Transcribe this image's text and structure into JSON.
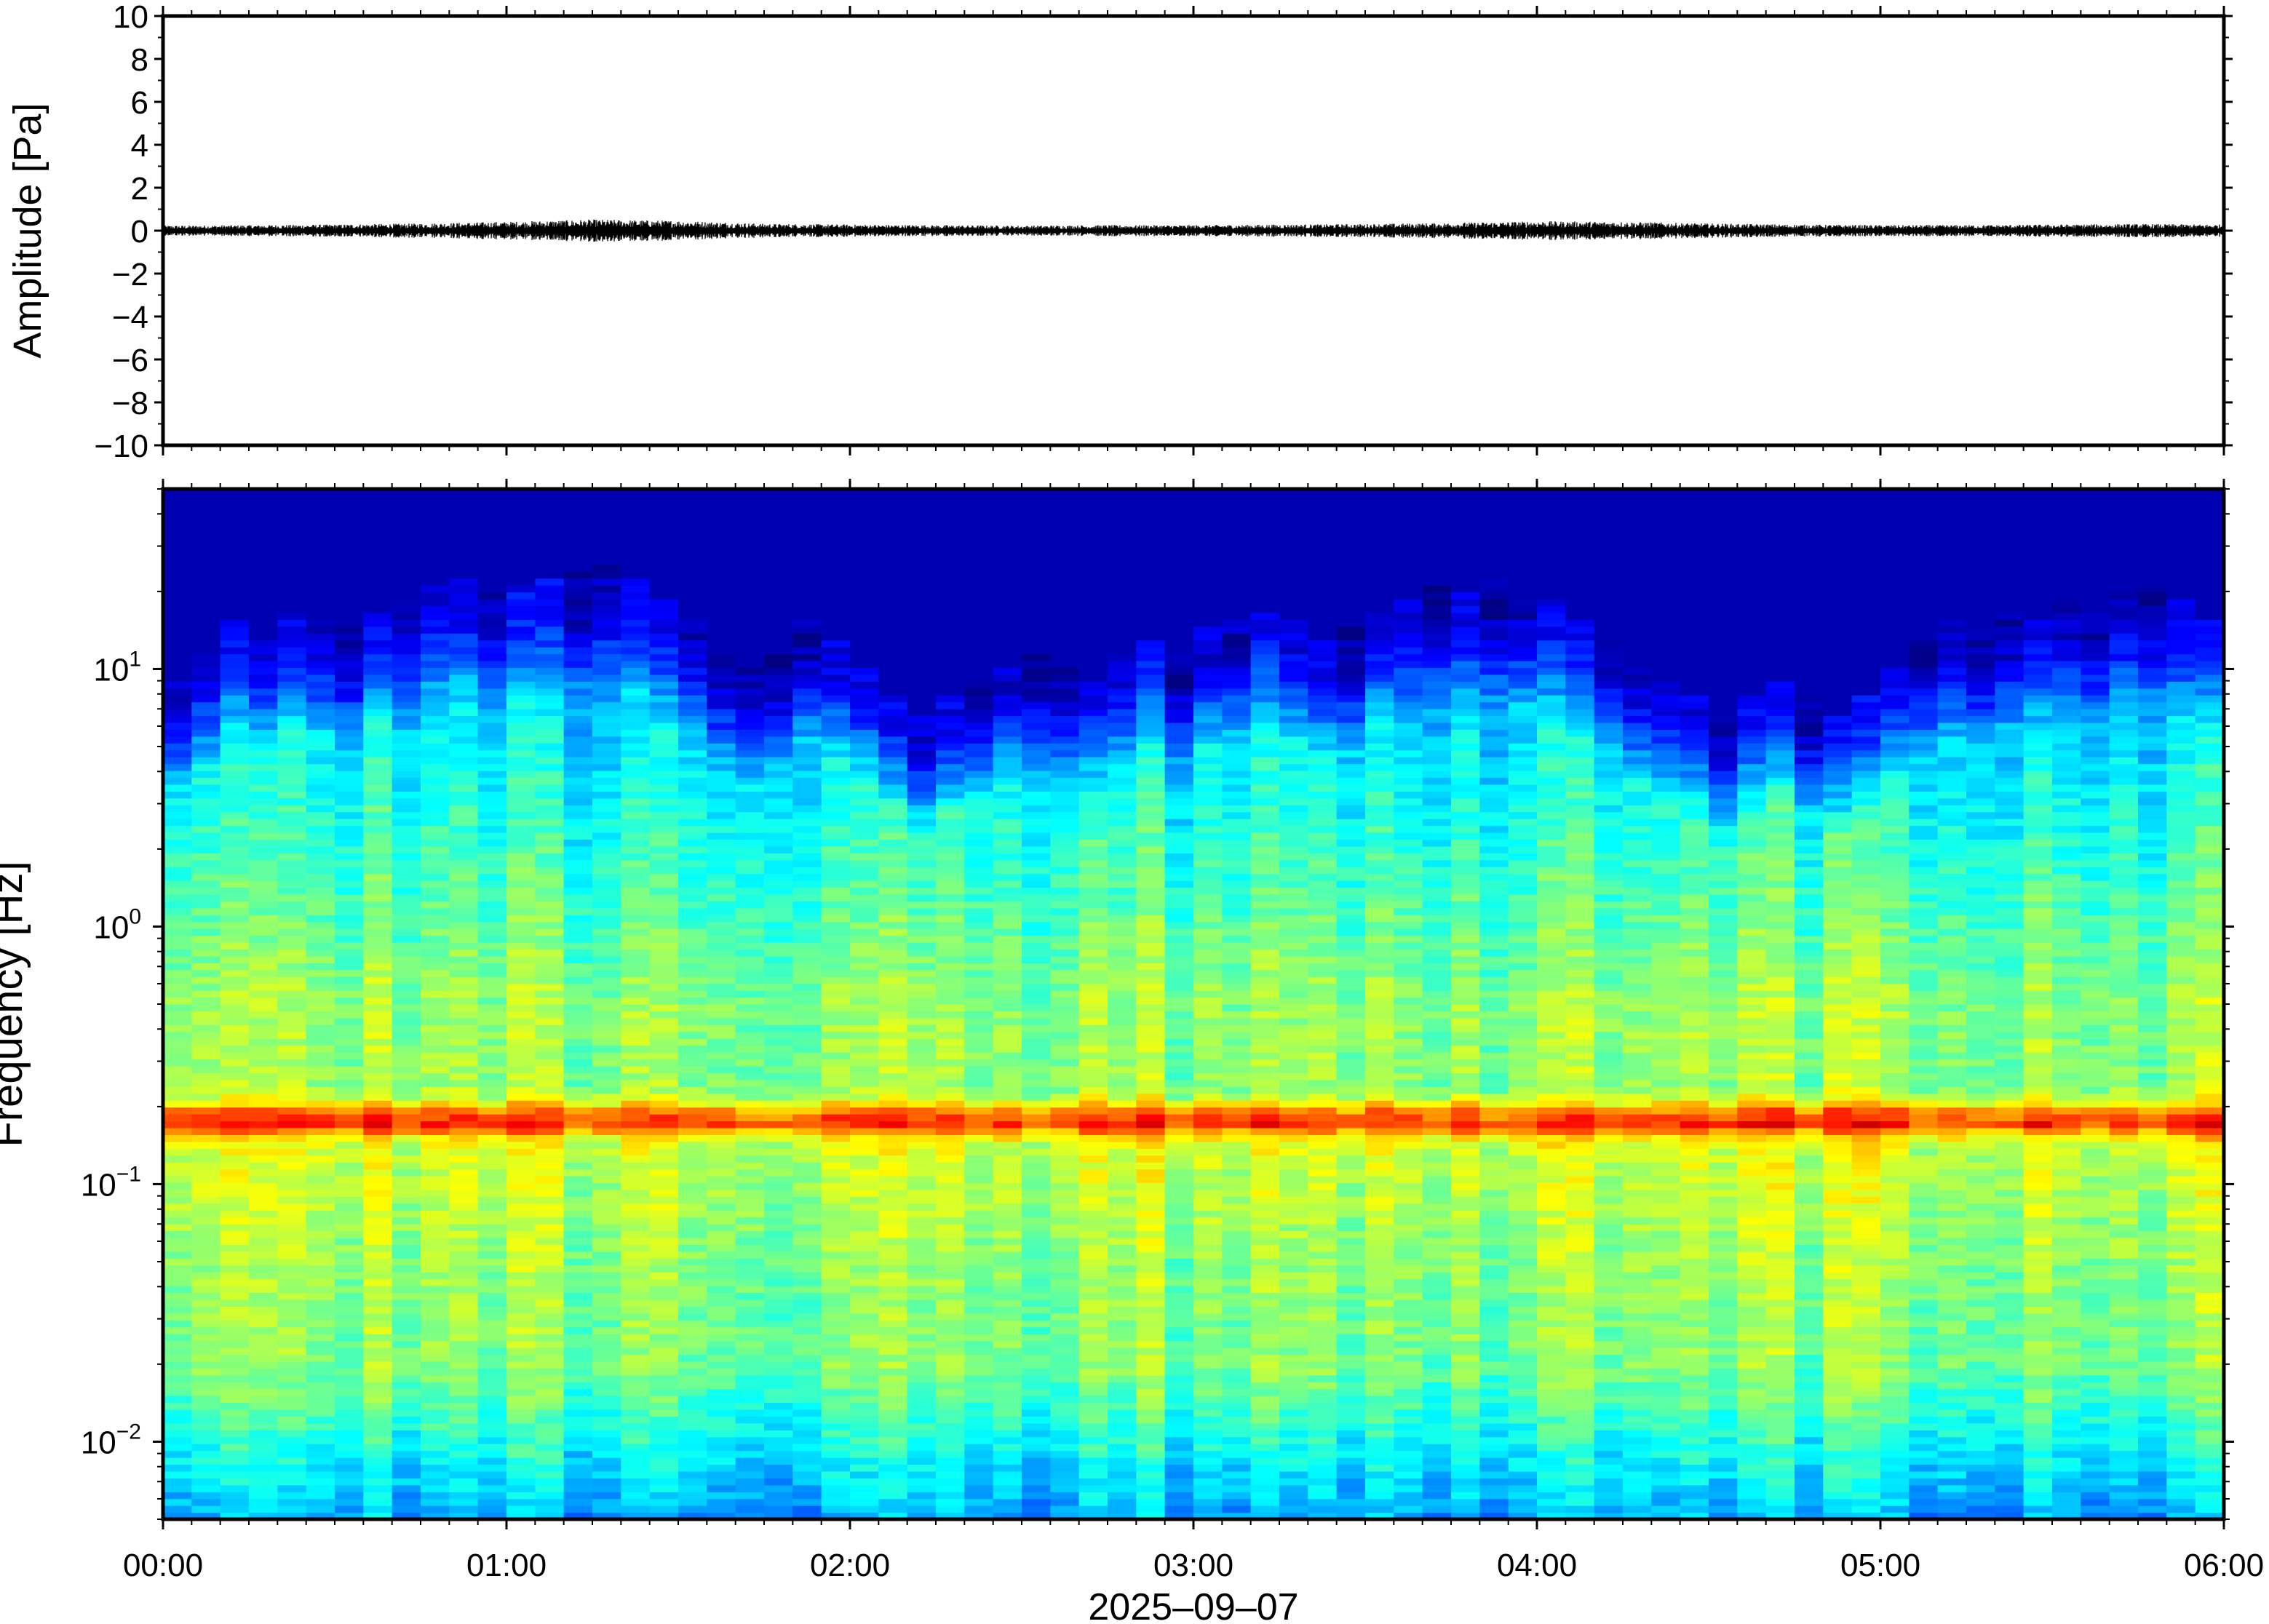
{
  "chart_data": [
    {
      "type": "line",
      "ylabel": "Amplitude [Pa]",
      "xlabel": "2025–09–07",
      "ylim": [
        -10,
        10
      ],
      "y_ticks": [
        10,
        8,
        6,
        4,
        2,
        0,
        -2,
        -4,
        -6,
        -8,
        -10
      ],
      "y_tick_labels": [
        "10",
        "8",
        "6",
        "4",
        "2",
        "0",
        "−2",
        "−4",
        "−6",
        "−8",
        "−10"
      ],
      "x_range_hours": [
        0,
        6
      ],
      "series": [
        {
          "color": "#000000",
          "x_hours": [
            0.0,
            0.25,
            0.5,
            0.75,
            1.0,
            1.25,
            1.5,
            1.75,
            2.0,
            2.25,
            2.5,
            2.75,
            3.0,
            3.25,
            3.5,
            3.75,
            4.0,
            4.25,
            4.5,
            4.75,
            5.0,
            5.25,
            5.5,
            5.75,
            6.0
          ],
          "envelope_pa": [
            0.18,
            0.2,
            0.22,
            0.26,
            0.32,
            0.4,
            0.36,
            0.25,
            0.22,
            0.2,
            0.18,
            0.2,
            0.2,
            0.22,
            0.24,
            0.28,
            0.34,
            0.32,
            0.26,
            0.22,
            0.2,
            0.2,
            0.22,
            0.24,
            0.22
          ]
        }
      ],
      "grid": false
    },
    {
      "type": "heatmap",
      "ylabel": "Frequency [Hz]",
      "xlabel": "2025–09–07",
      "y_scale": "log",
      "ylim_hz": [
        0.005,
        50
      ],
      "y_ticks_hz": [
        0.01,
        0.1,
        1,
        10
      ],
      "y_tick_labels": [
        {
          "base": "10",
          "exp": "−2"
        },
        {
          "base": "10",
          "exp": "−1"
        },
        {
          "base": "10",
          "exp": "0"
        },
        {
          "base": "10",
          "exp": "1"
        }
      ],
      "x_range_hours": [
        0,
        6
      ],
      "x_ticks_hours": [
        0,
        1,
        2,
        3,
        4,
        5,
        6
      ],
      "x_tick_labels": [
        "00:00",
        "01:00",
        "02:00",
        "03:00",
        "04:00",
        "05:00",
        "06:00"
      ],
      "colormap": "jet",
      "microseism_peak_hz": 0.18,
      "columns": 72,
      "upper_cutoff_hz": [
        7,
        9,
        12,
        10,
        13,
        12,
        11,
        13,
        14,
        16,
        17,
        15,
        16,
        17,
        18,
        19,
        17,
        14,
        12,
        9,
        8,
        9,
        12,
        10,
        8,
        6,
        5,
        6,
        7,
        8,
        9,
        8,
        7,
        9,
        10,
        9,
        11,
        12,
        13,
        12,
        10,
        11,
        13,
        14,
        16,
        15,
        17,
        16,
        14,
        12,
        10,
        8,
        7,
        6,
        5,
        6,
        7,
        6,
        5,
        6,
        8,
        10,
        12,
        11,
        13,
        12,
        14,
        13,
        15,
        16,
        14,
        12
      ],
      "grid": false
    }
  ]
}
